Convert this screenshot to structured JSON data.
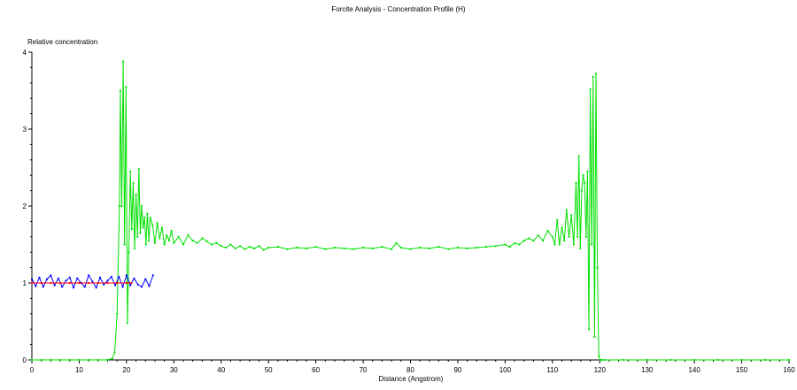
{
  "chart_data": {
    "type": "line",
    "title": "Forcite Analysis - Concentration Profile (H)",
    "xlabel": "Distance (Angstrom)",
    "ylabel": "Relative concentration",
    "xlim": [
      0,
      160
    ],
    "ylim": [
      0,
      4
    ],
    "xticks": [
      "0",
      "10",
      "20",
      "30",
      "40",
      "50",
      "60",
      "70",
      "80",
      "90",
      "100",
      "110",
      "120",
      "130",
      "140",
      "150",
      "160"
    ],
    "yticks": [
      "0",
      "1",
      "2",
      "3",
      "4"
    ],
    "grid": false,
    "legend": "none",
    "series": [
      {
        "color": "#00e000",
        "marker": "dot",
        "x": [
          0,
          2,
          4,
          6,
          8,
          10,
          12,
          14,
          16,
          17,
          17.5,
          18,
          18.5,
          18.7,
          19,
          19.3,
          19.6,
          19.9,
          20.2,
          20.5,
          20.8,
          21.1,
          21.4,
          21.7,
          22,
          22.3,
          22.6,
          22.9,
          23.2,
          23.5,
          23.8,
          24.1,
          24.4,
          24.7,
          25,
          25.5,
          26,
          26.5,
          27,
          27.5,
          28,
          28.5,
          29,
          29.5,
          30,
          31,
          32,
          33,
          34,
          35,
          36,
          37,
          38,
          39,
          40,
          41,
          42,
          43,
          44,
          45,
          46,
          47,
          48,
          49,
          50,
          52,
          54,
          56,
          58,
          60,
          62,
          64,
          66,
          68,
          70,
          72,
          74,
          76,
          77,
          78,
          80,
          82,
          84,
          86,
          88,
          90,
          92,
          94,
          96,
          98,
          100,
          101,
          102,
          103,
          104,
          105,
          106,
          107,
          108,
          109,
          110,
          110.5,
          111,
          111.5,
          112,
          112.5,
          113,
          113.5,
          114,
          114.5,
          115,
          115.3,
          115.6,
          115.9,
          116.2,
          116.5,
          116.8,
          117.1,
          117.4,
          117.7,
          118,
          118.3,
          118.6,
          118.9,
          119.2,
          119.5,
          119.8,
          120.1,
          120.4,
          121,
          125,
          130,
          135,
          140,
          145,
          150,
          155,
          160
        ],
        "y": [
          0,
          0,
          0,
          0,
          0,
          0,
          0,
          0,
          0,
          0.02,
          0.1,
          0.6,
          2.0,
          3.5,
          2.0,
          3.88,
          1.5,
          3.55,
          0.48,
          1.4,
          2.45,
          1.7,
          2.3,
          1.45,
          2.15,
          1.6,
          2.48,
          1.65,
          2.0,
          1.72,
          1.85,
          1.5,
          1.9,
          1.55,
          1.85,
          1.75,
          1.52,
          1.78,
          1.58,
          1.72,
          1.5,
          1.62,
          1.55,
          1.68,
          1.52,
          1.6,
          1.5,
          1.62,
          1.55,
          1.52,
          1.58,
          1.54,
          1.5,
          1.52,
          1.48,
          1.46,
          1.5,
          1.45,
          1.48,
          1.44,
          1.47,
          1.45,
          1.48,
          1.43,
          1.46,
          1.47,
          1.44,
          1.46,
          1.45,
          1.47,
          1.44,
          1.46,
          1.45,
          1.44,
          1.46,
          1.45,
          1.47,
          1.44,
          1.52,
          1.46,
          1.44,
          1.46,
          1.45,
          1.47,
          1.44,
          1.46,
          1.45,
          1.46,
          1.47,
          1.48,
          1.5,
          1.47,
          1.52,
          1.5,
          1.55,
          1.58,
          1.55,
          1.62,
          1.55,
          1.68,
          1.6,
          1.5,
          1.82,
          1.5,
          1.72,
          1.55,
          1.95,
          1.6,
          1.88,
          1.5,
          2.3,
          1.6,
          2.65,
          1.45,
          2.2,
          2.4,
          2.3,
          1.6,
          2.45,
          0.4,
          3.52,
          1.5,
          3.68,
          0.3,
          3.72,
          1.2,
          0.05,
          0,
          0,
          0,
          0,
          0,
          0,
          0,
          0,
          0,
          0,
          0
        ]
      },
      {
        "color": "#0000ff",
        "marker": "dot",
        "x": [
          0,
          0.8,
          1.6,
          2.4,
          3.2,
          4,
          4.8,
          5.6,
          6.4,
          7.2,
          8,
          8.8,
          9.6,
          10.4,
          11.2,
          12,
          12.8,
          13.6,
          14.4,
          15.2,
          16,
          16.8,
          17.6,
          18.4,
          19.2,
          20,
          20.8,
          21.6,
          22.4,
          23.2,
          24,
          24.8,
          25.6
        ],
        "y": [
          1.05,
          0.96,
          1.07,
          0.95,
          1.05,
          1.1,
          0.97,
          1.06,
          0.95,
          1.03,
          1.07,
          0.94,
          1.06,
          1.0,
          0.95,
          1.1,
          1.02,
          0.94,
          1.07,
          0.98,
          1.03,
          1.08,
          0.97,
          1.08,
          0.95,
          1.1,
          0.97,
          1.06,
          0.98,
          0.95,
          1.05,
          0.96,
          1.1
        ]
      },
      {
        "color": "#ff0000",
        "marker": "dot",
        "x": [
          0,
          2,
          4,
          6,
          8,
          10,
          12,
          14,
          16,
          18,
          20,
          21
        ],
        "y": [
          1.0,
          1.0,
          1.0,
          1.0,
          1.0,
          1.0,
          1.0,
          1.0,
          1.0,
          1.0,
          1.0,
          1.0
        ]
      }
    ]
  }
}
